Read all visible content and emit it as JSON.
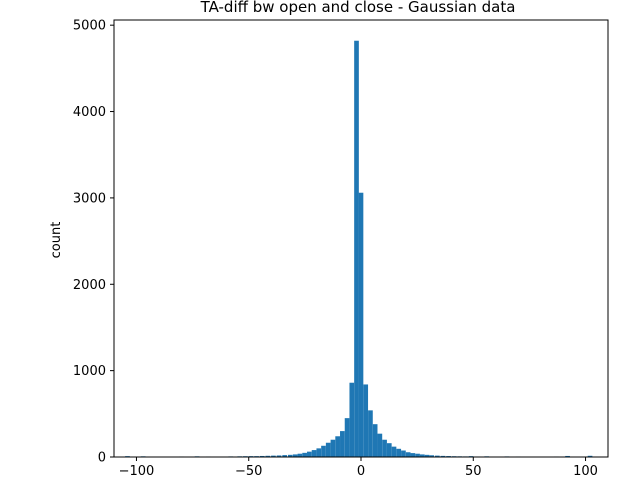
{
  "chart_data": {
    "type": "bar",
    "title": "TA-diff bw open and close - Gaussian data",
    "xlabel": "",
    "ylabel": "count",
    "xlim": [
      -110,
      110
    ],
    "ylim": [
      0,
      5060
    ],
    "xticks": [
      -100,
      -50,
      0,
      50,
      100
    ],
    "xtick_labels": [
      "−100",
      "−50",
      "0",
      "50",
      "100"
    ],
    "yticks": [
      0,
      1000,
      2000,
      3000,
      4000,
      5000
    ],
    "ytick_labels": [
      "0",
      "1000",
      "2000",
      "3000",
      "4000",
      "5000"
    ],
    "grid": false,
    "legend": "none",
    "bar_color": "#1f77b4",
    "bin_width": 2.08,
    "bins_x": [
      -104,
      -102,
      -97,
      -92,
      -86,
      -80,
      -73,
      -68,
      -63,
      -58,
      -54,
      -51.5,
      -49,
      -46.5,
      -44,
      -41.5,
      -39,
      -36.5,
      -34,
      -31.5,
      -29.3,
      -27.2,
      -25.1,
      -23.0,
      -20.9,
      -18.8,
      -16.7,
      -14.6,
      -12.5,
      -10.4,
      -8.3,
      -6.2,
      -4.1,
      -2.0,
      0.0,
      2.1,
      4.2,
      6.3,
      8.4,
      10.5,
      12.6,
      14.7,
      16.8,
      18.9,
      21.0,
      23.1,
      25.2,
      27.3,
      29.4,
      31.5,
      34,
      36.5,
      39,
      41.5,
      44,
      46.5,
      49,
      52,
      56,
      60,
      65,
      70,
      76,
      82,
      87,
      92,
      97,
      102
    ],
    "bins_counts": [
      10,
      3,
      8,
      5,
      4,
      6,
      8,
      6,
      5,
      7,
      8,
      9,
      10,
      10,
      12,
      14,
      16,
      18,
      22,
      25,
      30,
      38,
      48,
      62,
      80,
      100,
      130,
      165,
      200,
      240,
      300,
      450,
      860,
      4820,
      3060,
      840,
      540,
      380,
      270,
      200,
      160,
      120,
      95,
      75,
      55,
      45,
      38,
      30,
      25,
      20,
      16,
      13,
      11,
      9,
      8,
      7,
      10,
      6,
      8,
      5,
      7,
      6,
      5,
      4,
      6,
      12,
      4,
      14
    ]
  }
}
